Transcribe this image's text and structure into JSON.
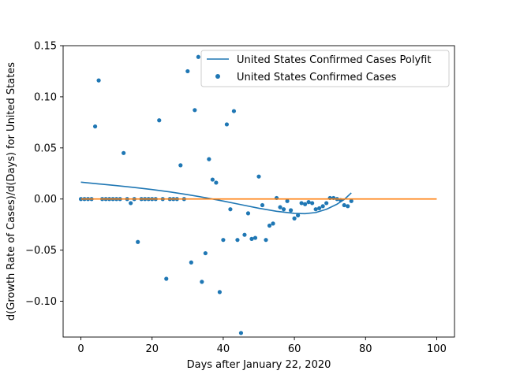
{
  "chart_data": {
    "type": "scatter",
    "title": "",
    "xlabel": "Days after January 22, 2020",
    "ylabel": "d(Growth Rate of Cases)/d(Days) for United States",
    "xlim": [
      -5,
      105
    ],
    "ylim": [
      -0.135,
      0.15
    ],
    "xticks": [
      0,
      20,
      40,
      60,
      80,
      100
    ],
    "yticks": [
      -0.1,
      -0.05,
      0.0,
      0.05,
      0.1,
      0.15
    ],
    "ytick_labels": [
      "−0.10",
      "−0.05",
      "0.00",
      "0.05",
      "0.10",
      "0.15"
    ],
    "grid": false,
    "legend_position": "top-right",
    "colors": {
      "series_blue": "#1f77b4",
      "series_orange": "#ff7f0e"
    },
    "series": [
      {
        "name": "United States Confirmed Cases Polyfit",
        "kind": "line",
        "color": "#1f77b4",
        "x": [
          0,
          5,
          10,
          15,
          20,
          25,
          30,
          35,
          40,
          45,
          50,
          55,
          60,
          63,
          66,
          69,
          72,
          74,
          76
        ],
        "y": [
          0.0165,
          0.0148,
          0.0131,
          0.0113,
          0.0093,
          0.007,
          0.0043,
          0.0013,
          -0.002,
          -0.0055,
          -0.009,
          -0.012,
          -0.014,
          -0.0143,
          -0.0132,
          -0.01,
          -0.005,
          -0.0005,
          0.006
        ]
      },
      {
        "name": "United States Confirmed Cases",
        "kind": "scatter",
        "color": "#1f77b4",
        "points": [
          [
            0,
            0
          ],
          [
            1,
            0
          ],
          [
            2,
            0
          ],
          [
            3,
            0
          ],
          [
            4,
            0.071
          ],
          [
            5,
            0.116
          ],
          [
            6,
            0
          ],
          [
            7,
            0
          ],
          [
            8,
            0
          ],
          [
            9,
            0
          ],
          [
            10,
            0
          ],
          [
            11,
            0
          ],
          [
            12,
            0.045
          ],
          [
            13,
            0
          ],
          [
            14,
            -0.004
          ],
          [
            15,
            0
          ],
          [
            16,
            -0.042
          ],
          [
            17,
            0
          ],
          [
            18,
            0
          ],
          [
            19,
            0
          ],
          [
            20,
            0
          ],
          [
            21,
            0
          ],
          [
            22,
            0.077
          ],
          [
            23,
            0
          ],
          [
            24,
            -0.078
          ],
          [
            25,
            0
          ],
          [
            26,
            0
          ],
          [
            27,
            0
          ],
          [
            28,
            0.033
          ],
          [
            29,
            0
          ],
          [
            30,
            0.125
          ],
          [
            31,
            -0.062
          ],
          [
            32,
            0.087
          ],
          [
            33,
            0.139
          ],
          [
            34,
            -0.081
          ],
          [
            35,
            -0.053
          ],
          [
            36,
            0.039
          ],
          [
            37,
            0.019
          ],
          [
            38,
            0.016
          ],
          [
            39,
            -0.091
          ],
          [
            40,
            -0.04
          ],
          [
            41,
            0.073
          ],
          [
            42,
            -0.01
          ],
          [
            43,
            0.086
          ],
          [
            44,
            -0.04
          ],
          [
            45,
            -0.131
          ],
          [
            46,
            -0.035
          ],
          [
            47,
            -0.014
          ],
          [
            48,
            -0.039
          ],
          [
            49,
            -0.038
          ],
          [
            50,
            0.022
          ],
          [
            51,
            -0.006
          ],
          [
            52,
            -0.04
          ],
          [
            53,
            -0.026
          ],
          [
            54,
            -0.024
          ],
          [
            55,
            0.001
          ],
          [
            56,
            -0.008
          ],
          [
            57,
            -0.01
          ],
          [
            58,
            -0.002
          ],
          [
            59,
            -0.011
          ],
          [
            60,
            -0.019
          ],
          [
            61,
            -0.016
          ],
          [
            62,
            -0.004
          ],
          [
            63,
            -0.005
          ],
          [
            64,
            -0.003
          ],
          [
            65,
            -0.004
          ],
          [
            66,
            -0.01
          ],
          [
            67,
            -0.009
          ],
          [
            68,
            -0.007
          ],
          [
            69,
            -0.004
          ],
          [
            70,
            0.001
          ],
          [
            71,
            0.001
          ],
          [
            72,
            0.0
          ],
          [
            73,
            -0.001
          ],
          [
            74,
            -0.006
          ],
          [
            75,
            -0.007
          ],
          [
            76,
            -0.002
          ]
        ]
      },
      {
        "kind": "line",
        "color": "#ff7f0e",
        "x": [
          0,
          100
        ],
        "y": [
          0,
          0
        ]
      }
    ]
  }
}
